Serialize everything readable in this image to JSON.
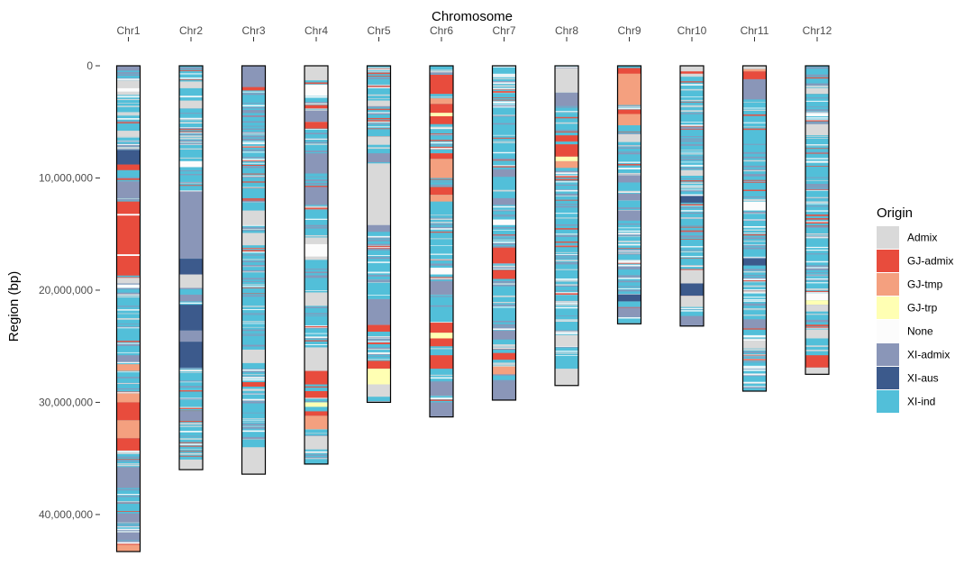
{
  "chart_data": {
    "type": "chromosome-ideogram",
    "xlabel": "Chromosome",
    "ylabel": "Region (bp)",
    "x_axis_position": "top",
    "y_axis_reversed": true,
    "ylim": [
      0,
      43300000
    ],
    "yticks": [
      0,
      10000000,
      20000000,
      30000000,
      40000000
    ],
    "ytick_labels": [
      "0",
      "10,000,000",
      "20,000,000",
      "30,000,000",
      "40,000,000"
    ],
    "categories": [
      "Chr1",
      "Chr2",
      "Chr3",
      "Chr4",
      "Chr5",
      "Chr6",
      "Chr7",
      "Chr8",
      "Chr9",
      "Chr10",
      "Chr11",
      "Chr12"
    ],
    "chromosome_lengths": [
      43300000,
      36000000,
      36400000,
      35500000,
      30000000,
      31300000,
      29800000,
      28500000,
      23000000,
      23200000,
      29000000,
      27500000
    ],
    "legend": {
      "title": "Origin",
      "position": "right",
      "entries": [
        {
          "label": "Admix",
          "color": "#d9d9d9"
        },
        {
          "label": "GJ-admix",
          "color": "#e84c3d"
        },
        {
          "label": "GJ-tmp",
          "color": "#f4a07f"
        },
        {
          "label": "GJ-trp",
          "color": "#ffffb3"
        },
        {
          "label": "None",
          "color": "#fcfcfc"
        },
        {
          "label": "XI-admix",
          "color": "#8a96b8"
        },
        {
          "label": "XI-aus",
          "color": "#3c5a8c"
        },
        {
          "label": "XI-ind",
          "color": "#52bfd9"
        }
      ]
    },
    "background_category": "XI-ind",
    "segments": [
      {
        "chr": "Chr1",
        "category": "XI-admix",
        "start": 0,
        "end": 400000
      },
      {
        "chr": "Chr1",
        "category": "Admix",
        "start": 1300000,
        "end": 2600000
      },
      {
        "chr": "Chr1",
        "category": "None",
        "start": 2000000,
        "end": 2300000
      },
      {
        "chr": "Chr1",
        "category": "Admix",
        "start": 5800000,
        "end": 6300000
      },
      {
        "chr": "Chr1",
        "category": "XI-aus",
        "start": 7500000,
        "end": 8800000
      },
      {
        "chr": "Chr1",
        "category": "GJ-admix",
        "start": 8800000,
        "end": 9300000
      },
      {
        "chr": "Chr1",
        "category": "XI-admix",
        "start": 10300000,
        "end": 11800000
      },
      {
        "chr": "Chr1",
        "category": "GJ-admix",
        "start": 12100000,
        "end": 18700000
      },
      {
        "chr": "Chr1",
        "category": "None",
        "start": 13200000,
        "end": 13350000
      },
      {
        "chr": "Chr1",
        "category": "None",
        "start": 16800000,
        "end": 16950000
      },
      {
        "chr": "Chr1",
        "category": "Admix",
        "start": 18900000,
        "end": 19400000
      },
      {
        "chr": "Chr1",
        "category": "None",
        "start": 19500000,
        "end": 19800000
      },
      {
        "chr": "Chr1",
        "category": "XI-admix",
        "start": 25800000,
        "end": 26400000
      },
      {
        "chr": "Chr1",
        "category": "GJ-tmp",
        "start": 26600000,
        "end": 27200000
      },
      {
        "chr": "Chr1",
        "category": "GJ-tmp",
        "start": 29200000,
        "end": 30000000
      },
      {
        "chr": "Chr1",
        "category": "GJ-admix",
        "start": 30000000,
        "end": 31600000
      },
      {
        "chr": "Chr1",
        "category": "GJ-tmp",
        "start": 31600000,
        "end": 33200000
      },
      {
        "chr": "Chr1",
        "category": "GJ-admix",
        "start": 33200000,
        "end": 34300000
      },
      {
        "chr": "Chr1",
        "category": "XI-admix",
        "start": 35800000,
        "end": 37600000
      },
      {
        "chr": "Chr1",
        "category": "XI-admix",
        "start": 39900000,
        "end": 40700000
      },
      {
        "chr": "Chr1",
        "category": "XI-admix",
        "start": 41600000,
        "end": 42300000
      },
      {
        "chr": "Chr1",
        "category": "GJ-tmp",
        "start": 42700000,
        "end": 43300000
      },
      {
        "chr": "Chr2",
        "category": "Admix",
        "start": 1400000,
        "end": 2000000
      },
      {
        "chr": "Chr2",
        "category": "Admix",
        "start": 3100000,
        "end": 3800000
      },
      {
        "chr": "Chr2",
        "category": "None",
        "start": 8500000,
        "end": 9000000
      },
      {
        "chr": "Chr2",
        "category": "XI-admix",
        "start": 11200000,
        "end": 17200000
      },
      {
        "chr": "Chr2",
        "category": "XI-aus",
        "start": 17200000,
        "end": 18600000
      },
      {
        "chr": "Chr2",
        "category": "Admix",
        "start": 18600000,
        "end": 19800000
      },
      {
        "chr": "Chr2",
        "category": "XI-admix",
        "start": 20400000,
        "end": 21000000
      },
      {
        "chr": "Chr2",
        "category": "XI-aus",
        "start": 21300000,
        "end": 23600000
      },
      {
        "chr": "Chr2",
        "category": "XI-admix",
        "start": 23600000,
        "end": 24600000
      },
      {
        "chr": "Chr2",
        "category": "XI-aus",
        "start": 24600000,
        "end": 26900000
      },
      {
        "chr": "Chr2",
        "category": "XI-admix",
        "start": 30800000,
        "end": 31600000
      },
      {
        "chr": "Chr2",
        "category": "Admix",
        "start": 35100000,
        "end": 36000000
      },
      {
        "chr": "Chr3",
        "category": "XI-admix",
        "start": 0,
        "end": 2000000
      },
      {
        "chr": "Chr3",
        "category": "GJ-admix",
        "start": 1900000,
        "end": 2200000
      },
      {
        "chr": "Chr3",
        "category": "Admix",
        "start": 12900000,
        "end": 14200000
      },
      {
        "chr": "Chr3",
        "category": "Admix",
        "start": 14900000,
        "end": 16000000
      },
      {
        "chr": "Chr3",
        "category": "Admix",
        "start": 25300000,
        "end": 26500000
      },
      {
        "chr": "Chr3",
        "category": "GJ-admix",
        "start": 28200000,
        "end": 28600000
      },
      {
        "chr": "Chr3",
        "category": "Admix",
        "start": 34000000,
        "end": 36400000
      },
      {
        "chr": "Chr4",
        "category": "Admix",
        "start": 0,
        "end": 1300000
      },
      {
        "chr": "Chr4",
        "category": "None",
        "start": 1700000,
        "end": 2700000
      },
      {
        "chr": "Chr4",
        "category": "GJ-admix",
        "start": 3500000,
        "end": 3800000
      },
      {
        "chr": "Chr4",
        "category": "XI-admix",
        "start": 4000000,
        "end": 5000000
      },
      {
        "chr": "Chr4",
        "category": "GJ-admix",
        "start": 5000000,
        "end": 5600000
      },
      {
        "chr": "Chr4",
        "category": "XI-admix",
        "start": 7800000,
        "end": 9600000
      },
      {
        "chr": "Chr4",
        "category": "XI-admix",
        "start": 10800000,
        "end": 12400000
      },
      {
        "chr": "Chr4",
        "category": "Admix",
        "start": 15300000,
        "end": 17300000
      },
      {
        "chr": "Chr4",
        "category": "None",
        "start": 15900000,
        "end": 17000000
      },
      {
        "chr": "Chr4",
        "category": "Admix",
        "start": 20200000,
        "end": 21400000
      },
      {
        "chr": "Chr4",
        "category": "Admix",
        "start": 25100000,
        "end": 27200000
      },
      {
        "chr": "Chr4",
        "category": "GJ-admix",
        "start": 27200000,
        "end": 28400000
      },
      {
        "chr": "Chr4",
        "category": "GJ-admix",
        "start": 29000000,
        "end": 29600000
      },
      {
        "chr": "Chr4",
        "category": "GJ-trp",
        "start": 30000000,
        "end": 30400000
      },
      {
        "chr": "Chr4",
        "category": "GJ-admix",
        "start": 30800000,
        "end": 31200000
      },
      {
        "chr": "Chr4",
        "category": "GJ-tmp",
        "start": 31200000,
        "end": 32400000
      },
      {
        "chr": "Chr4",
        "category": "Admix",
        "start": 33000000,
        "end": 34200000
      },
      {
        "chr": "Chr5",
        "category": "Admix",
        "start": 3100000,
        "end": 3600000
      },
      {
        "chr": "Chr5",
        "category": "Admix",
        "start": 6300000,
        "end": 7000000
      },
      {
        "chr": "Chr5",
        "category": "XI-admix",
        "start": 7800000,
        "end": 8600000
      },
      {
        "chr": "Chr5",
        "category": "Admix",
        "start": 8700000,
        "end": 14200000
      },
      {
        "chr": "Chr5",
        "category": "XI-admix",
        "start": 14200000,
        "end": 14800000
      },
      {
        "chr": "Chr5",
        "category": "XI-admix",
        "start": 20800000,
        "end": 23100000
      },
      {
        "chr": "Chr5",
        "category": "GJ-admix",
        "start": 23100000,
        "end": 23700000
      },
      {
        "chr": "Chr5",
        "category": "GJ-admix",
        "start": 26300000,
        "end": 27000000
      },
      {
        "chr": "Chr5",
        "category": "GJ-trp",
        "start": 27000000,
        "end": 28400000
      },
      {
        "chr": "Chr5",
        "category": "Admix",
        "start": 28400000,
        "end": 29500000
      },
      {
        "chr": "Chr6",
        "category": "GJ-admix",
        "start": 800000,
        "end": 2500000
      },
      {
        "chr": "Chr6",
        "category": "GJ-tmp",
        "start": 2900000,
        "end": 3400000
      },
      {
        "chr": "Chr6",
        "category": "GJ-admix",
        "start": 3400000,
        "end": 4200000
      },
      {
        "chr": "Chr6",
        "category": "GJ-trp",
        "start": 4200000,
        "end": 4500000
      },
      {
        "chr": "Chr6",
        "category": "GJ-admix",
        "start": 4500000,
        "end": 5200000
      },
      {
        "chr": "Chr6",
        "category": "GJ-admix",
        "start": 7800000,
        "end": 8300000
      },
      {
        "chr": "Chr6",
        "category": "GJ-tmp",
        "start": 8300000,
        "end": 10000000
      },
      {
        "chr": "Chr6",
        "category": "GJ-admix",
        "start": 10800000,
        "end": 11500000
      },
      {
        "chr": "Chr6",
        "category": "GJ-tmp",
        "start": 11500000,
        "end": 12100000
      },
      {
        "chr": "Chr6",
        "category": "None",
        "start": 18000000,
        "end": 18600000
      },
      {
        "chr": "Chr6",
        "category": "XI-admix",
        "start": 19200000,
        "end": 20400000
      },
      {
        "chr": "Chr6",
        "category": "GJ-admix",
        "start": 22900000,
        "end": 23800000
      },
      {
        "chr": "Chr6",
        "category": "GJ-trp",
        "start": 23800000,
        "end": 24300000
      },
      {
        "chr": "Chr6",
        "category": "GJ-admix",
        "start": 24300000,
        "end": 25000000
      },
      {
        "chr": "Chr6",
        "category": "GJ-admix",
        "start": 25800000,
        "end": 27000000
      },
      {
        "chr": "Chr6",
        "category": "XI-admix",
        "start": 28200000,
        "end": 29400000
      },
      {
        "chr": "Chr6",
        "category": "XI-admix",
        "start": 30000000,
        "end": 31300000
      },
      {
        "chr": "Chr7",
        "category": "XI-admix",
        "start": 9300000,
        "end": 9900000
      },
      {
        "chr": "Chr7",
        "category": "XI-admix",
        "start": 11800000,
        "end": 12400000
      },
      {
        "chr": "Chr7",
        "category": "None",
        "start": 13700000,
        "end": 14200000
      },
      {
        "chr": "Chr7",
        "category": "GJ-admix",
        "start": 16200000,
        "end": 17600000
      },
      {
        "chr": "Chr7",
        "category": "GJ-admix",
        "start": 18200000,
        "end": 19000000
      },
      {
        "chr": "Chr7",
        "category": "XI-admix",
        "start": 23600000,
        "end": 24400000
      },
      {
        "chr": "Chr7",
        "category": "GJ-admix",
        "start": 25600000,
        "end": 26200000
      },
      {
        "chr": "Chr7",
        "category": "GJ-tmp",
        "start": 26800000,
        "end": 27500000
      },
      {
        "chr": "Chr7",
        "category": "XI-admix",
        "start": 28200000,
        "end": 29800000
      },
      {
        "chr": "Chr8",
        "category": "Admix",
        "start": 200000,
        "end": 2400000
      },
      {
        "chr": "Chr8",
        "category": "XI-admix",
        "start": 2400000,
        "end": 3600000
      },
      {
        "chr": "Chr8",
        "category": "GJ-admix",
        "start": 6200000,
        "end": 6700000
      },
      {
        "chr": "Chr8",
        "category": "GJ-admix",
        "start": 7000000,
        "end": 8100000
      },
      {
        "chr": "Chr8",
        "category": "GJ-trp",
        "start": 8100000,
        "end": 8500000
      },
      {
        "chr": "Chr8",
        "category": "GJ-tmp",
        "start": 8500000,
        "end": 9100000
      },
      {
        "chr": "Chr8",
        "category": "Admix",
        "start": 24000000,
        "end": 25000000
      },
      {
        "chr": "Chr8",
        "category": "Admix",
        "start": 27000000,
        "end": 28500000
      },
      {
        "chr": "Chr9",
        "category": "GJ-admix",
        "start": 200000,
        "end": 700000
      },
      {
        "chr": "Chr9",
        "category": "GJ-tmp",
        "start": 700000,
        "end": 3500000
      },
      {
        "chr": "Chr9",
        "category": "GJ-admix",
        "start": 3900000,
        "end": 4300000
      },
      {
        "chr": "Chr9",
        "category": "GJ-tmp",
        "start": 4300000,
        "end": 5300000
      },
      {
        "chr": "Chr9",
        "category": "Admix",
        "start": 6100000,
        "end": 6800000
      },
      {
        "chr": "Chr9",
        "category": "XI-admix",
        "start": 9800000,
        "end": 10400000
      },
      {
        "chr": "Chr9",
        "category": "XI-admix",
        "start": 11400000,
        "end": 12000000
      },
      {
        "chr": "Chr9",
        "category": "XI-admix",
        "start": 12900000,
        "end": 13800000
      },
      {
        "chr": "Chr9",
        "category": "XI-aus",
        "start": 20400000,
        "end": 21000000
      },
      {
        "chr": "Chr9",
        "category": "XI-admix",
        "start": 21600000,
        "end": 22400000
      },
      {
        "chr": "Chr10",
        "category": "Admix",
        "start": 0,
        "end": 900000
      },
      {
        "chr": "Chr10",
        "category": "GJ-admix",
        "start": 500000,
        "end": 700000
      },
      {
        "chr": "Chr10",
        "category": "Admix",
        "start": 9300000,
        "end": 9800000
      },
      {
        "chr": "Chr10",
        "category": "XI-aus",
        "start": 11600000,
        "end": 12200000
      },
      {
        "chr": "Chr10",
        "category": "Admix",
        "start": 18200000,
        "end": 19400000
      },
      {
        "chr": "Chr10",
        "category": "XI-aus",
        "start": 19400000,
        "end": 20500000
      },
      {
        "chr": "Chr10",
        "category": "Admix",
        "start": 20500000,
        "end": 21500000
      },
      {
        "chr": "Chr10",
        "category": "XI-admix",
        "start": 22300000,
        "end": 23200000
      },
      {
        "chr": "Chr11",
        "category": "Admix",
        "start": 0,
        "end": 300000
      },
      {
        "chr": "Chr11",
        "category": "GJ-tmp",
        "start": 300000,
        "end": 500000
      },
      {
        "chr": "Chr11",
        "category": "GJ-admix",
        "start": 500000,
        "end": 1200000
      },
      {
        "chr": "Chr11",
        "category": "XI-admix",
        "start": 1200000,
        "end": 3000000
      },
      {
        "chr": "Chr11",
        "category": "None",
        "start": 12100000,
        "end": 12900000
      },
      {
        "chr": "Chr11",
        "category": "XI-aus",
        "start": 17200000,
        "end": 17800000
      },
      {
        "chr": "Chr11",
        "category": "XI-admix",
        "start": 22600000,
        "end": 23400000
      },
      {
        "chr": "Chr11",
        "category": "Admix",
        "start": 24500000,
        "end": 25200000
      },
      {
        "chr": "Chr12",
        "category": "Admix",
        "start": 2000000,
        "end": 2500000
      },
      {
        "chr": "Chr12",
        "category": "None",
        "start": 4200000,
        "end": 4500000
      },
      {
        "chr": "Chr12",
        "category": "Admix",
        "start": 5200000,
        "end": 6200000
      },
      {
        "chr": "Chr12",
        "category": "None",
        "start": 20300000,
        "end": 20900000
      },
      {
        "chr": "Chr12",
        "category": "GJ-trp",
        "start": 20900000,
        "end": 21300000
      },
      {
        "chr": "Chr12",
        "category": "Admix",
        "start": 21300000,
        "end": 21900000
      },
      {
        "chr": "Chr12",
        "category": "Admix",
        "start": 23500000,
        "end": 24300000
      },
      {
        "chr": "Chr12",
        "category": "GJ-admix",
        "start": 25800000,
        "end": 26900000
      },
      {
        "chr": "Chr12",
        "category": "Admix",
        "start": 26900000,
        "end": 27500000
      }
    ]
  }
}
